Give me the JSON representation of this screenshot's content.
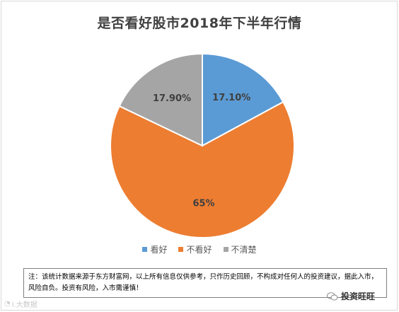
{
  "chart_data": {
    "type": "pie",
    "title": "是否看好股市2018年下半年行情",
    "categories": [
      "看好",
      "不看好",
      "不清楚"
    ],
    "values": [
      17.1,
      65,
      17.9
    ],
    "labels": [
      "17.10%",
      "65%",
      "17.90%"
    ],
    "colors": [
      "#5B9BD5",
      "#ED7D31",
      "#A5A5A5"
    ],
    "legend_position": "bottom"
  },
  "note": {
    "text": "注：该统计数据来源于东方财富网，以上所有信息仅供参考，只作历史回顾，不构成对任何人的投资建议，据此入市，风险自负。投资有风险，入市需谨慎！"
  },
  "brand": {
    "name": "投资旺旺",
    "icon": "wechat-icon"
  },
  "watermark": {
    "text": "i.大数据",
    "icon": "watermark-icon"
  }
}
